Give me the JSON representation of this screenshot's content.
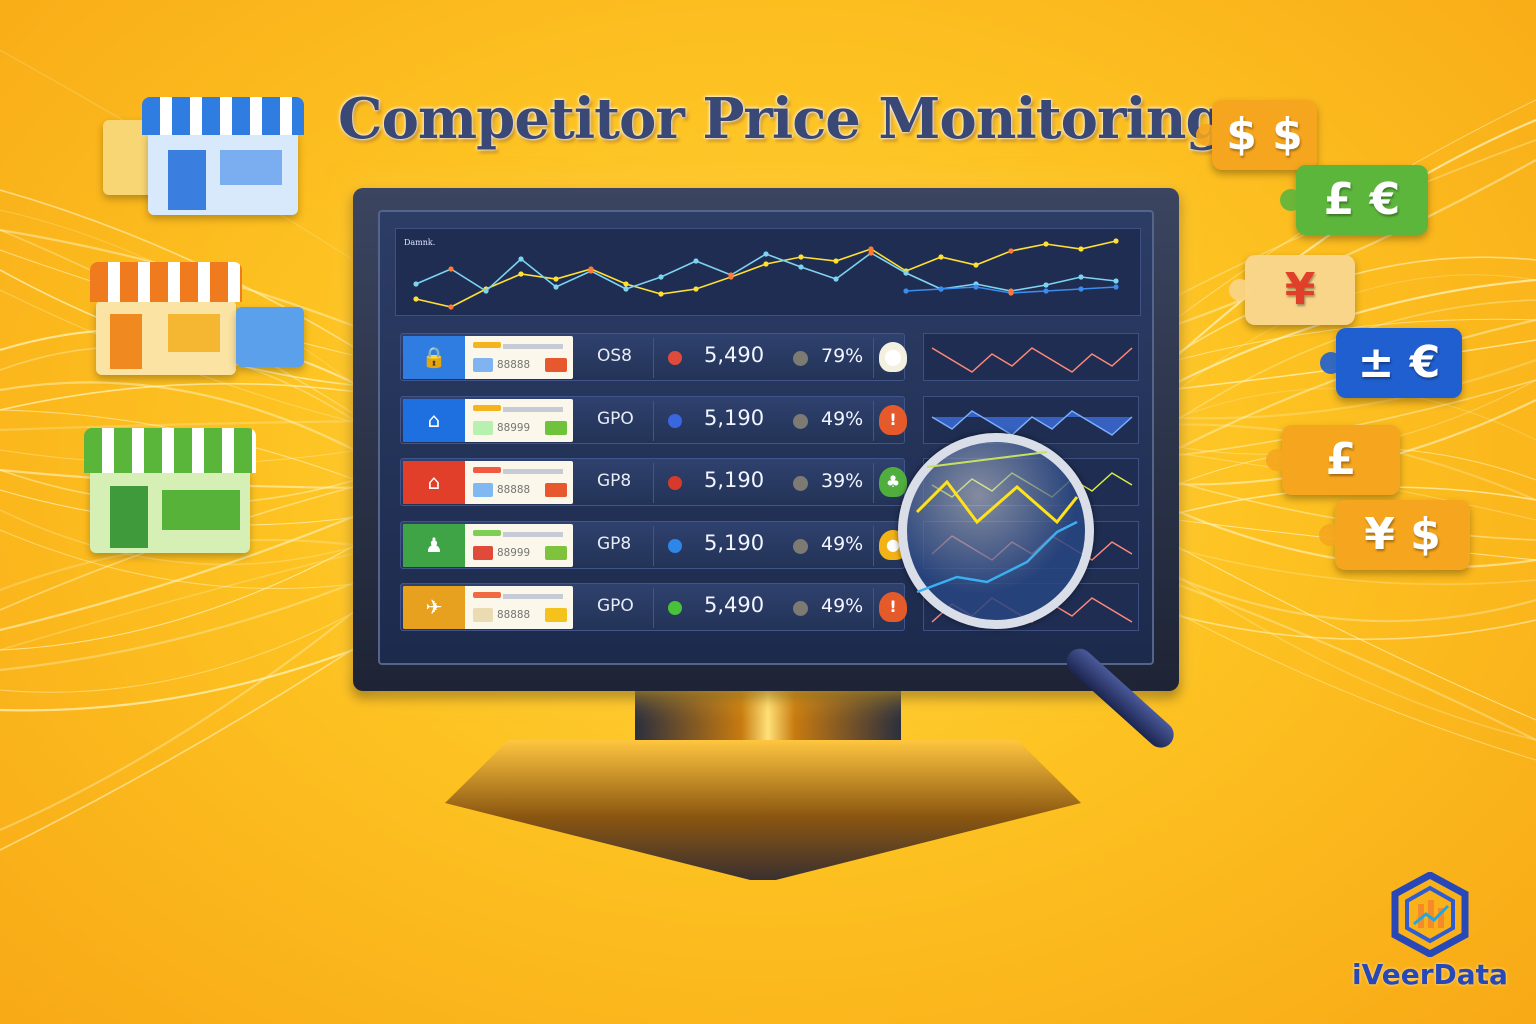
{
  "title": "Competitor Price Monitoring",
  "dashboard": {
    "chart_label": "Damnk.",
    "rows": [
      {
        "code": "88888",
        "currency": "OS8",
        "price": "5,490",
        "percent": "79%",
        "accent": "#2f7de0",
        "dot_color": "#e04a3a",
        "alert": "pin-icon",
        "alert_color": "#f4f0e0",
        "alert_glyph": "⬤",
        "sq": "#7fb4f0",
        "sq2": "#e8582e",
        "bar": "#f5b31e"
      },
      {
        "code": "88999",
        "currency": "GPO",
        "price": "5,190",
        "percent": "49%",
        "accent": "#1e6fe0",
        "dot_color": "#3a66e0",
        "alert": "warning-icon",
        "alert_color": "#e55a2b",
        "alert_glyph": "!",
        "sq": "#b8f0b0",
        "sq2": "#6fc23c",
        "bar": "#f5b31e"
      },
      {
        "code": "88888",
        "currency": "GP8",
        "price": "5,190",
        "percent": "39%",
        "accent": "#e23f2b",
        "dot_color": "#d63a2a",
        "alert": "leaf-icon",
        "alert_color": "#4fae3e",
        "alert_glyph": "♣",
        "sq": "#80b8f2",
        "sq2": "#e8582e",
        "bar": "#ef5a40"
      },
      {
        "code": "88999",
        "currency": "GP8",
        "price": "5,190",
        "percent": "49%",
        "accent": "#3ea445",
        "dot_color": "#2d86e8",
        "alert": "lock-icon",
        "alert_color": "#f3b317",
        "alert_glyph": "●",
        "sq": "#e04a3a",
        "sq2": "#7fc23c",
        "bar": "#7ccf52"
      },
      {
        "code": "88888",
        "currency": "GPO",
        "price": "5,490",
        "percent": "49%",
        "accent": "#e8a11e",
        "dot_color": "#49c23a",
        "alert": "warning-icon",
        "alert_color": "#e55a2b",
        "alert_glyph": "!",
        "sq": "#eadcb0",
        "sq2": "#f4c21a",
        "bar": "#ef6a40"
      }
    ]
  },
  "price_tags": [
    {
      "symbols": "$ $",
      "color": "#f5a51e"
    },
    {
      "symbols": "£ €",
      "color": "#5cb63c"
    },
    {
      "symbols": "¥",
      "color": "#f9d58a"
    },
    {
      "symbols": "± €",
      "color": "#1f5fd0"
    },
    {
      "symbols": "£",
      "color": "#f5a51e"
    },
    {
      "symbols": "¥ $",
      "color": "#f5a51e"
    }
  ],
  "brand": {
    "name": "iVeerData",
    "color": "#2848b8"
  },
  "colors": {
    "background": "#fdc322",
    "screen": "#1f2d52"
  }
}
